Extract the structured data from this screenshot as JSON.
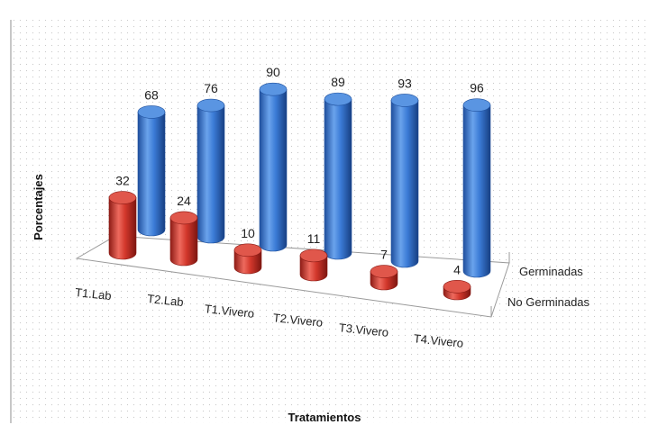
{
  "chart_data": {
    "type": "bar",
    "variant": "3d-cylinder",
    "title": "",
    "xlabel": "Tratamientos",
    "ylabel": "Porcentajes",
    "categories": [
      "T1.Lab",
      "T2.Lab",
      "T1.Vivero",
      "T2.Vivero",
      "T3.Vivero",
      "T4.Vivero"
    ],
    "series": [
      {
        "name": "Germinadas",
        "values": [
          68,
          76,
          90,
          89,
          93,
          96
        ],
        "color": "#3A7BD5"
      },
      {
        "name": "No Germinadas",
        "values": [
          32,
          24,
          10,
          11,
          7,
          4
        ],
        "color": "#D63A2F"
      }
    ],
    "ylim": [
      0,
      100
    ],
    "grid": false,
    "legend": "depth-axis labels (right)",
    "data_labels": true
  }
}
